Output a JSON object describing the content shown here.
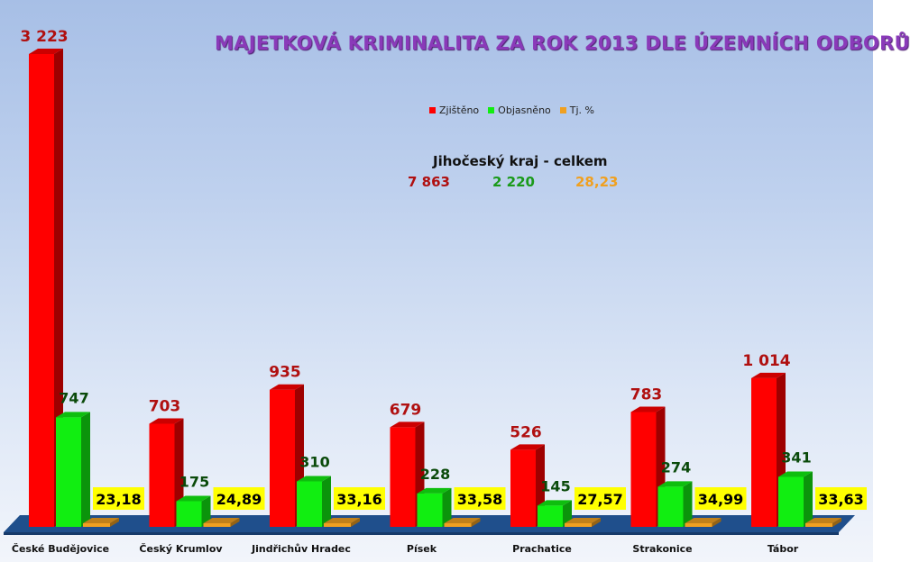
{
  "chart_data": {
    "type": "bar",
    "title": "MAJETKOVÁ KRIMINALITA ZA ROK 2013 DLE ÚZEMNÍCH ODBORŮ",
    "categories": [
      "České Budějovice",
      "Český Krumlov",
      "Jindřichův Hradec",
      "Písek",
      "Prachatice",
      "Strakonice",
      "Tábor"
    ],
    "series": [
      {
        "name": "Zjištěno",
        "values": [
          3223,
          703,
          935,
          679,
          526,
          783,
          1014
        ],
        "labels": [
          "3 223",
          "703",
          "935",
          "679",
          "526",
          "783",
          "1 014"
        ],
        "color": "#ff0000"
      },
      {
        "name": "Objasněno",
        "values": [
          747,
          175,
          310,
          228,
          145,
          274,
          341
        ],
        "labels": [
          "747",
          "175",
          "310",
          "228",
          "145",
          "274",
          "341"
        ],
        "color": "#11ee11"
      },
      {
        "name": "Tj. %",
        "values": [
          23.18,
          24.89,
          33.16,
          33.58,
          27.57,
          34.99,
          33.63
        ],
        "labels": [
          "23,18",
          "24,89",
          "33,16",
          "33,58",
          "27,57",
          "34,99",
          "33,63"
        ],
        "color": "#f0a020"
      }
    ],
    "legend_position": "top-right",
    "grid": false
  },
  "summary": {
    "title": "Jihočeský kraj - celkem",
    "zjisteno": "7 863",
    "objasneno": "2 220",
    "procento": "28,23"
  },
  "colors": {
    "zjisteno_label": "#b01010",
    "objasneno_label": "#0a4a0a",
    "percent_label_bg": "#ffff00",
    "summary_red": "#b01010",
    "summary_green": "#1a9a1a",
    "summary_orange": "#f0a020",
    "floor": "#1f4f8c"
  }
}
